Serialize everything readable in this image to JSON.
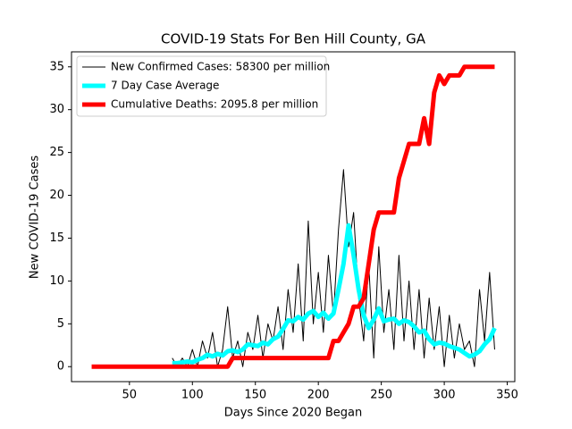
{
  "chart_data": {
    "type": "line",
    "title": "COVID-19 Stats For Ben Hill County, GA",
    "x_label": "Days Since 2020 Began",
    "y_label": "New COVID-19 Cases",
    "xlim": [
      4,
      356
    ],
    "ylim": [
      -1.75,
      36.75
    ],
    "xticks": [
      50,
      100,
      150,
      200,
      250,
      300,
      350
    ],
    "yticks": [
      0,
      5,
      10,
      15,
      20,
      25,
      30,
      35
    ],
    "legend": "upper left",
    "x": [
      20,
      24,
      28,
      32,
      36,
      40,
      44,
      48,
      52,
      56,
      60,
      64,
      68,
      72,
      76,
      80,
      84,
      88,
      92,
      96,
      100,
      104,
      108,
      112,
      116,
      120,
      124,
      128,
      132,
      136,
      140,
      144,
      148,
      152,
      156,
      160,
      164,
      168,
      172,
      176,
      180,
      184,
      188,
      192,
      196,
      200,
      204,
      208,
      212,
      216,
      220,
      224,
      228,
      232,
      236,
      240,
      244,
      248,
      252,
      256,
      260,
      264,
      268,
      272,
      276,
      280,
      284,
      288,
      292,
      296,
      300,
      304,
      308,
      312,
      316,
      320,
      324,
      328,
      332,
      336,
      340
    ],
    "series": [
      {
        "name": "New Confirmed Cases: 58300 per million",
        "color": "#000000",
        "width": 1,
        "values": [
          null,
          null,
          null,
          null,
          null,
          null,
          null,
          null,
          null,
          null,
          null,
          null,
          null,
          null,
          null,
          null,
          1,
          0,
          1,
          0,
          2,
          0,
          3,
          1,
          4,
          0,
          2,
          7,
          1,
          3,
          0,
          4,
          2,
          6,
          1,
          5,
          3,
          7,
          2,
          9,
          4,
          12,
          3,
          17,
          5,
          11,
          4,
          13,
          6,
          16,
          23,
          14,
          18,
          8,
          3,
          12,
          1,
          14,
          4,
          9,
          2,
          13,
          3,
          10,
          2,
          9,
          1,
          8,
          2,
          7,
          0,
          6,
          1,
          5,
          2,
          3,
          0,
          9,
          3,
          11,
          2
        ]
      },
      {
        "name": "7 Day Case Average",
        "color": "#00ffff",
        "width": 5,
        "values": [
          null,
          null,
          null,
          null,
          null,
          null,
          null,
          null,
          null,
          null,
          null,
          null,
          null,
          null,
          null,
          null,
          0.4,
          0.4,
          0.5,
          0.6,
          0.5,
          0.8,
          1,
          1.4,
          1.2,
          1.5,
          1.3,
          1.8,
          1.9,
          1.7,
          2,
          2.6,
          2.5,
          2.4,
          2.8,
          2.6,
          3.2,
          3.5,
          4.4,
          5.4,
          5.3,
          5.8,
          5.5,
          6.2,
          6.5,
          5.8,
          6.3,
          5.6,
          6.2,
          9,
          12,
          16.5,
          13,
          9,
          6,
          4.5,
          5.5,
          6.8,
          5.3,
          5.5,
          5.6,
          5,
          5.4,
          5.2,
          4.7,
          4,
          4.2,
          3.2,
          2.6,
          2.8,
          2.7,
          2.4,
          2.2,
          2,
          1.6,
          1.2,
          1.4,
          1.8,
          2.6,
          3.2,
          4.5
        ]
      },
      {
        "name": "Cumulative Deaths: 2095.8 per million",
        "color": "#ff0000",
        "width": 5,
        "values": [
          0,
          0,
          0,
          0,
          0,
          0,
          0,
          0,
          0,
          0,
          0,
          0,
          0,
          0,
          0,
          0,
          0,
          0,
          0,
          0,
          0,
          0,
          0,
          0,
          0,
          0,
          0,
          0,
          1,
          1,
          1,
          1,
          1,
          1,
          1,
          1,
          1,
          1,
          1,
          1,
          1,
          1,
          1,
          1,
          1,
          1,
          1,
          1,
          3,
          3,
          4,
          5,
          7,
          7,
          8,
          12,
          16,
          18,
          18,
          18,
          18,
          22,
          24,
          26,
          26,
          26,
          29,
          26,
          32,
          34,
          33,
          34,
          34,
          34,
          35,
          35,
          35,
          35,
          35,
          35,
          35
        ]
      }
    ]
  }
}
